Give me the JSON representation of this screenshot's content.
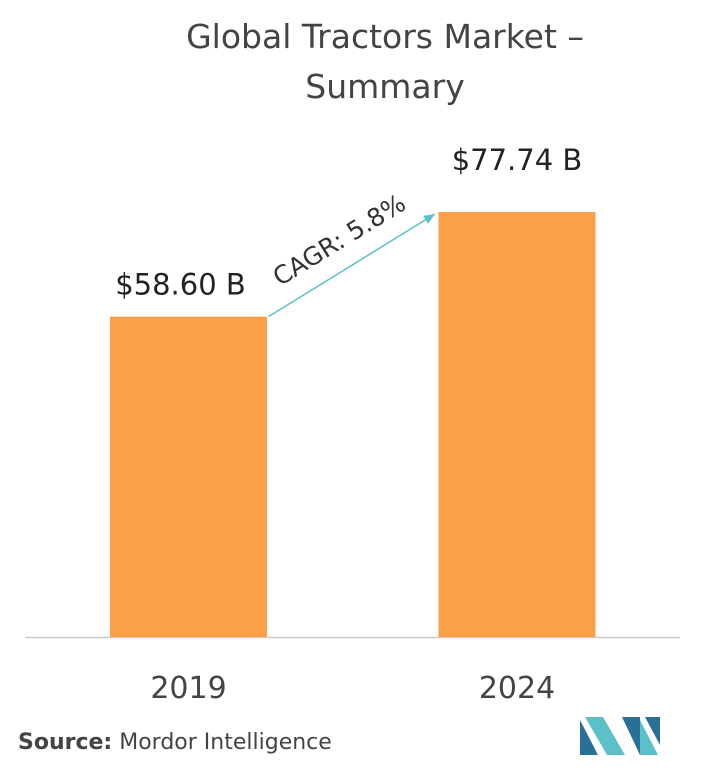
{
  "chart_data": {
    "type": "bar",
    "title": "Global Tractors Market – Summary",
    "categories": [
      "2019",
      "2024"
    ],
    "values": [
      58.6,
      77.74
    ],
    "value_labels": [
      "$58.60 B",
      "$77.74 B"
    ],
    "color": "#fb9f48",
    "annotation": "CAGR: 5.8%",
    "annotation_color": "#5bc0c8",
    "source_label": "Source:",
    "source": "Mordor Intelligence"
  }
}
